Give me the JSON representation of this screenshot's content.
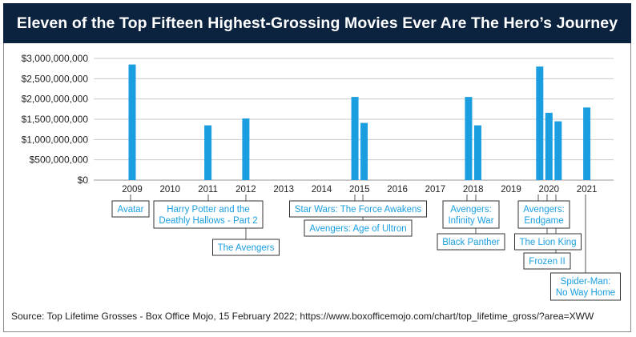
{
  "header": {
    "title": "Eleven of the Top Fifteen Highest-Grossing Movies Ever Are The Hero’s Journey"
  },
  "colors": {
    "title_bg": "#0c2340",
    "bar": "#1a9ee0",
    "grid": "#c8c8c8",
    "leader": "#555555"
  },
  "chart_data": {
    "type": "bar",
    "title": "Eleven of the Top Fifteen Highest-Grossing Movies Ever Are The Hero’s Journey",
    "xlabel": "",
    "ylabel": "",
    "ylim": [
      0,
      3000000000
    ],
    "yticks": [
      0,
      500000000,
      1000000000,
      1500000000,
      2000000000,
      2500000000,
      3000000000
    ],
    "ytick_labels": [
      "$0",
      "$500,000,000",
      "$1,000,000,000",
      "$1,500,000,000",
      "$2,000,000,000",
      "$2,500,000,000",
      "$3,000,000,000"
    ],
    "years": [
      "2009",
      "2010",
      "2011",
      "2012",
      "2013",
      "2014",
      "2015",
      "2016",
      "2017",
      "2018",
      "2019",
      "2020",
      "2021"
    ],
    "grid": true,
    "bars": [
      {
        "year": "2009",
        "offset": 0,
        "value": 2850000000,
        "label": "Avatar"
      },
      {
        "year": "2011",
        "offset": 0,
        "value": 1350000000,
        "label": "Harry Potter and the Deathly Hallows - Part 2"
      },
      {
        "year": "2012",
        "offset": 0,
        "value": 1520000000,
        "label": "The Avengers"
      },
      {
        "year": "2015",
        "offset": -0.5,
        "value": 2050000000,
        "label": "Star Wars:  The Force Awakens"
      },
      {
        "year": "2015",
        "offset": 0.5,
        "value": 1410000000,
        "label": "Avengers:  Age of Ultron"
      },
      {
        "year": "2018",
        "offset": -0.5,
        "value": 2050000000,
        "label": "Avengers: Infinity War"
      },
      {
        "year": "2018",
        "offset": 0.5,
        "value": 1350000000,
        "label": "Black Panther"
      },
      {
        "year": "2020",
        "offset": -1,
        "value": 2800000000,
        "label": "Avengers: Endgame"
      },
      {
        "year": "2020",
        "offset": 0,
        "value": 1660000000,
        "label": "The Lion King"
      },
      {
        "year": "2020",
        "offset": 1,
        "value": 1450000000,
        "label": "Frozen II"
      },
      {
        "year": "2021",
        "offset": 0,
        "value": 1790000000,
        "label": "Spider-Man: No Way Home"
      }
    ]
  },
  "source": {
    "text": "Source:  Top Lifetime Grosses - Box Office Mojo, 15 February 2022; https://www.boxofficemojo.com/chart/top_lifetime_gross/?area=XWW"
  }
}
